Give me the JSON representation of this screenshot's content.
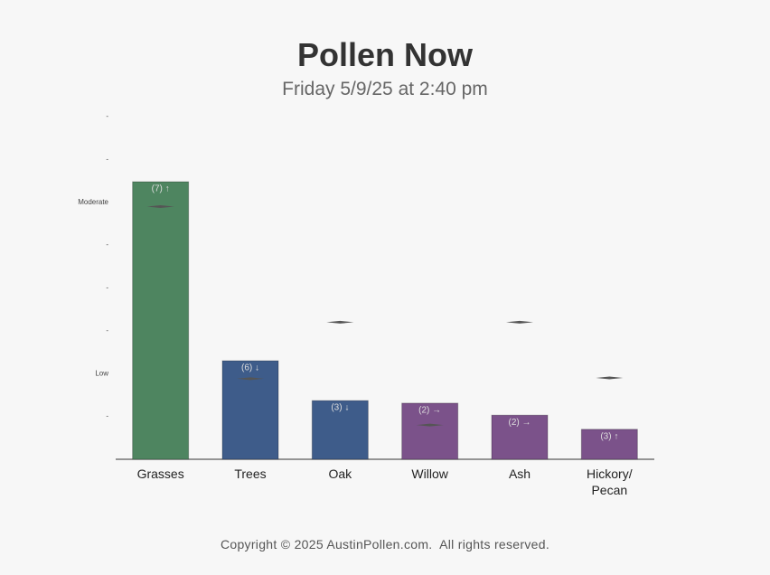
{
  "chart_data": {
    "type": "bar",
    "title": "Pollen Now",
    "subtitle": "Friday 5/9/25 at 2:40 pm",
    "categories": [
      "Grasses",
      "Trees",
      "Oak",
      "Willow",
      "Ash",
      "Hickory/\nPecan"
    ],
    "values": [
      6.48,
      2.3,
      1.37,
      1.31,
      1.03,
      0.7
    ],
    "colors": [
      "#4e8560",
      "#3e5c8a",
      "#3e5c8a",
      "#7b528a",
      "#7b528a",
      "#7b528a"
    ],
    "bar_notes": [
      "(7) ↑",
      "(6) ↓",
      "(3) ↓",
      "(2) →",
      "(2) →",
      "(3) ↑"
    ],
    "marker_values": [
      5.9,
      1.88,
      3.2,
      0.8,
      3.2,
      1.9
    ],
    "marker_color": "#555555",
    "ylim": [
      0,
      8
    ],
    "yticks": [
      {
        "value": 1,
        "label": "-"
      },
      {
        "value": 2,
        "label": "Low"
      },
      {
        "value": 3,
        "label": "-"
      },
      {
        "value": 4,
        "label": "-"
      },
      {
        "value": 5,
        "label": "-"
      },
      {
        "value": 6,
        "label": "Moderate"
      },
      {
        "value": 7,
        "label": "-"
      },
      {
        "value": 8,
        "label": "-"
      }
    ],
    "footer": "Copyright © 2025 AustinPollen.com.  All rights reserved."
  }
}
